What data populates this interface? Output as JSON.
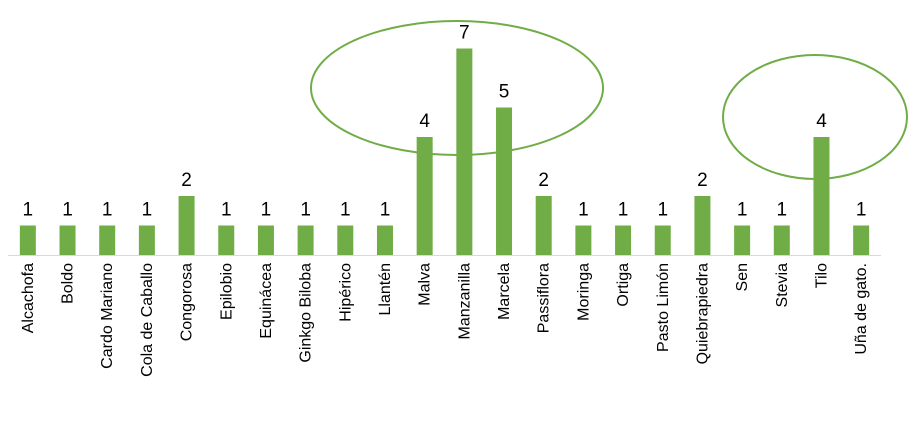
{
  "chart_data": {
    "type": "bar",
    "title": "",
    "xlabel": "",
    "ylabel": "",
    "categories": [
      "Alcachofa",
      "Boldo",
      "Cardo Mariano",
      "Cola de Caballo",
      "Congorosa",
      "Epilobio",
      "Equinácea",
      "Ginkgo Biloba",
      "Hipérico",
      "Llantén",
      "Malva",
      "Manzanilla",
      "Marcela",
      "Passiflora",
      "Moringa",
      "Ortiga",
      "Pasto Limón",
      "Quiebrapiedra",
      "Sen",
      "Stevia",
      "Tilo",
      "Uña de gato."
    ],
    "values": [
      1,
      1,
      1,
      1,
      2,
      1,
      1,
      1,
      1,
      1,
      4,
      7,
      5,
      2,
      1,
      1,
      1,
      2,
      1,
      1,
      4,
      1
    ],
    "data_labels": true,
    "ylim": [
      0,
      7
    ],
    "grid": false,
    "bar_color": "#70AD47",
    "highlight_color": "#70AD47",
    "highlights": [
      {
        "categories": [
          "Malva",
          "Manzanilla",
          "Marcela"
        ]
      },
      {
        "categories": [
          "Tilo",
          "Uña de gato."
        ]
      }
    ]
  }
}
